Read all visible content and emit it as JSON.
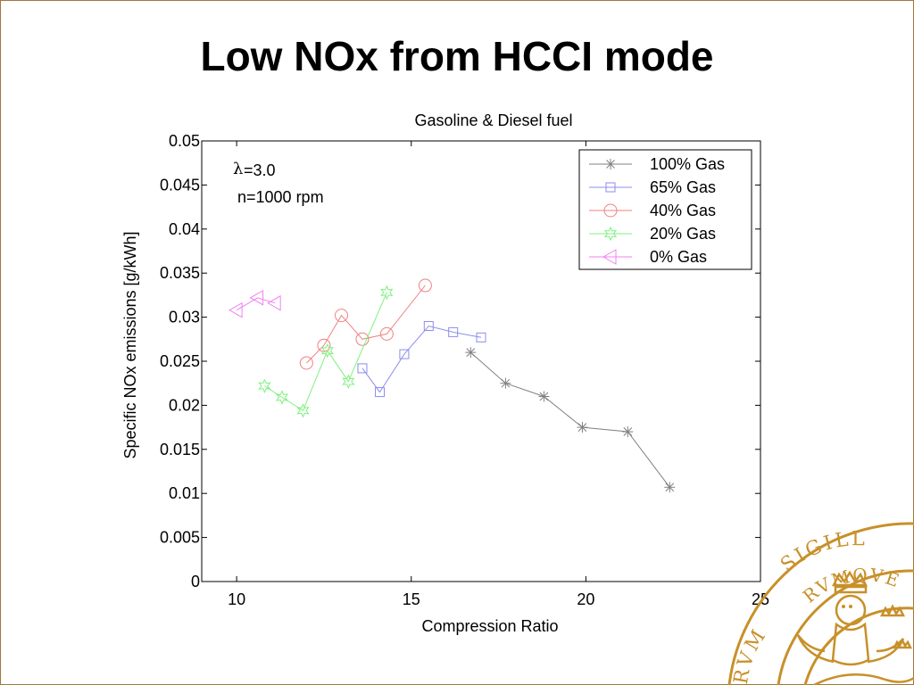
{
  "slide": {
    "title": "Low NOx from HCCI mode"
  },
  "colors": {
    "frame": "#a0783c",
    "seal": "#c8902a"
  },
  "seal": {
    "text_top": "SIGILL",
    "text_mid": "RVMQVE",
    "text_left": "RVM",
    "icon": "lund-university-seal"
  },
  "chart_data": {
    "type": "line",
    "title": "Gasoline & Diesel fuel",
    "xlabel": "Compression Ratio",
    "ylabel": "Specific NOx emissions [g/kWh]",
    "xlim": [
      9,
      25
    ],
    "ylim": [
      0,
      0.05
    ],
    "xticks": [
      10,
      15,
      20,
      25
    ],
    "yticks": [
      0,
      0.005,
      0.01,
      0.015,
      0.02,
      0.025,
      0.03,
      0.035,
      0.04,
      0.045,
      0.05
    ],
    "xtick_labels": [
      "10",
      "15",
      "20",
      "25"
    ],
    "ytick_labels": [
      "0",
      "0.005",
      "0.01",
      "0.015",
      "0.02",
      "0.025",
      "0.03",
      "0.035",
      "0.04",
      "0.045",
      "0.05"
    ],
    "grid": false,
    "legend_position": "top-right",
    "annotations": [
      "=3.0",
      "n=1000 rpm"
    ],
    "annotation_symbol": "λ",
    "series": [
      {
        "name": "100% Gas",
        "marker": "asterisk",
        "color": "#808080",
        "x": [
          16.7,
          17.7,
          18.8,
          19.9,
          21.2,
          22.4
        ],
        "y": [
          0.026,
          0.0225,
          0.021,
          0.0175,
          0.017,
          0.0107
        ]
      },
      {
        "name": "65% Gas",
        "marker": "square",
        "color": "#8c8cf0",
        "x": [
          13.6,
          14.1,
          14.8,
          15.5,
          16.2,
          17.0
        ],
        "y": [
          0.0242,
          0.0215,
          0.0258,
          0.029,
          0.0283,
          0.0277
        ]
      },
      {
        "name": "40% Gas",
        "marker": "circle",
        "color": "#f08080",
        "x": [
          12.0,
          12.5,
          13.0,
          13.6,
          14.3,
          15.4
        ],
        "y": [
          0.0248,
          0.0268,
          0.0302,
          0.0275,
          0.0281,
          0.0336
        ]
      },
      {
        "name": "20% Gas",
        "marker": "star",
        "color": "#80f080",
        "x": [
          10.8,
          11.3,
          11.9,
          12.6,
          13.2,
          14.3
        ],
        "y": [
          0.0222,
          0.0209,
          0.0194,
          0.0262,
          0.0227,
          0.0328
        ]
      },
      {
        "name": "0% Gas",
        "marker": "triangle-left",
        "color": "#f080f0",
        "x": [
          10.0,
          10.6,
          11.1
        ],
        "y": [
          0.0308,
          0.0322,
          0.0316
        ]
      }
    ]
  }
}
